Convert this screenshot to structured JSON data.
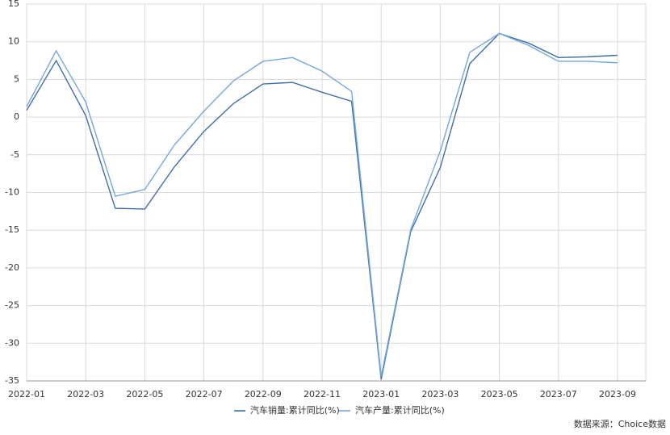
{
  "chart_data": {
    "type": "line",
    "categories": [
      "2022-01",
      null,
      "2022-03",
      null,
      "2022-05",
      null,
      "2022-07",
      null,
      "2022-09",
      null,
      "2022-11",
      null,
      "2023-01",
      null,
      "2023-03",
      null,
      "2023-05",
      null,
      "2023-07",
      null,
      "2023-09"
    ],
    "series": [
      {
        "name": "汽车销量:累计同比(%)",
        "color": "#3f6fa6",
        "values": [
          0.9,
          7.5,
          0.2,
          -12.1,
          -12.2,
          -6.6,
          -1.9,
          1.8,
          4.4,
          4.6,
          3.3,
          2.1,
          -34.8,
          -15.2,
          -6.7,
          7.1,
          11.1,
          9.8,
          7.9,
          8.0,
          8.2
        ]
      },
      {
        "name": "汽车产量:累计同比(%)",
        "color": "#74a7db",
        "values": [
          1.4,
          8.8,
          2.0,
          -10.5,
          -9.6,
          -3.7,
          0.8,
          4.8,
          7.4,
          7.9,
          6.1,
          3.4,
          -34.4,
          -14.9,
          -4.5,
          8.6,
          11.1,
          9.5,
          7.4,
          7.4,
          7.2
        ]
      }
    ],
    "ylim": [
      -35,
      15
    ],
    "yticks": [
      -35,
      -30,
      -25,
      -20,
      -15,
      -10,
      -5,
      0,
      5,
      10,
      15
    ],
    "grid": true,
    "legend": "bottom",
    "source": "数据来源：Choice数据"
  }
}
